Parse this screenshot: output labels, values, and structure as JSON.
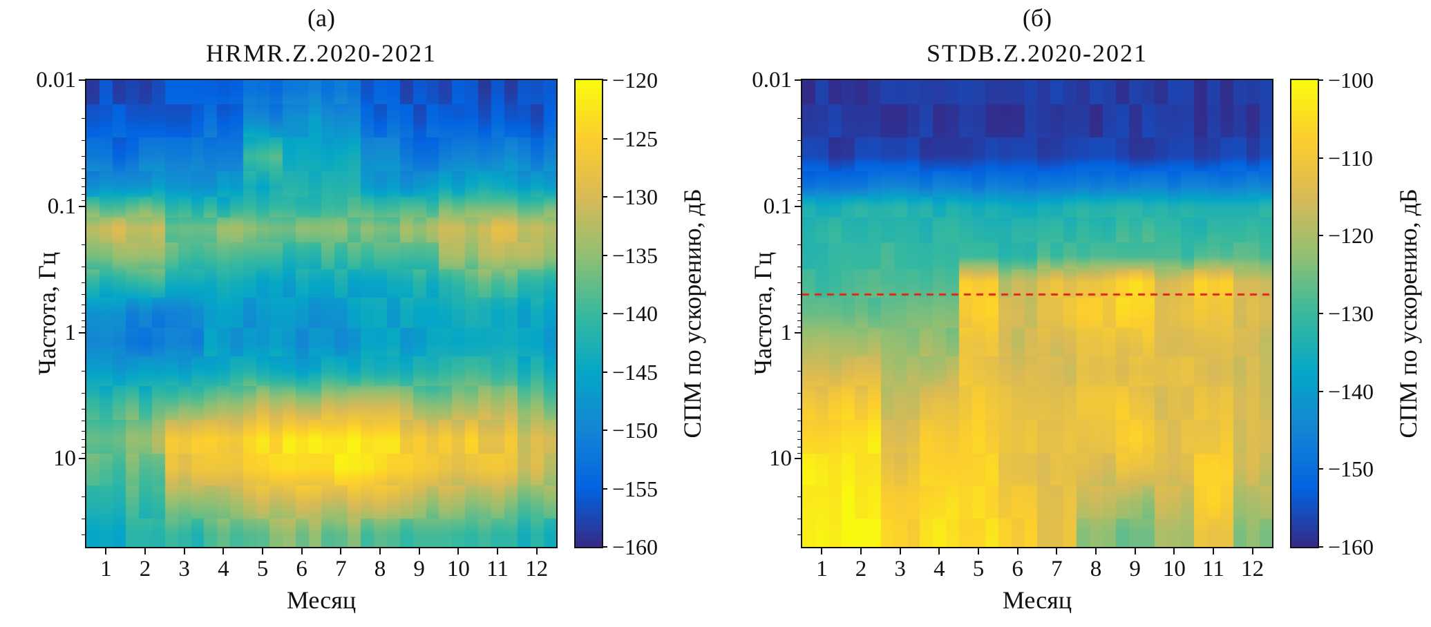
{
  "figure": {
    "background": "#ffffff"
  },
  "style": {
    "colormap": "parula",
    "colormap_stops": [
      [
        0.0,
        "#352a87"
      ],
      [
        0.125,
        "#0363e1"
      ],
      [
        0.25,
        "#1485d4"
      ],
      [
        0.375,
        "#06a7c6"
      ],
      [
        0.5,
        "#38b99e"
      ],
      [
        0.625,
        "#92bf73"
      ],
      [
        0.75,
        "#d9ba56"
      ],
      [
        0.875,
        "#fcce2e"
      ],
      [
        1.0,
        "#f9fb0e"
      ]
    ],
    "text_color": "#111111",
    "axis_color": "#111111",
    "column_jitter_db": 1.8,
    "subcolumns_per_month": 3
  },
  "chart_data": [
    {
      "type": "heatmap",
      "panel_label": "(а)",
      "title": "HRMR.Z.2020-2021",
      "xlabel": "Месяц",
      "ylabel": "Частота, Гц",
      "colorbar_label": "СПМ по ускорению, дБ",
      "months": [
        1,
        2,
        3,
        4,
        5,
        6,
        7,
        8,
        9,
        10,
        11,
        12
      ],
      "y_scale": "log",
      "y_axis_inverted": true,
      "y_range_hz": [
        0.01,
        50
      ],
      "y_ticks": [
        0.01,
        0.1,
        1,
        10
      ],
      "color_range_db": [
        -160,
        -120
      ],
      "colorbar_ticks": [
        -120,
        -125,
        -130,
        -135,
        -140,
        -145,
        -150,
        -155,
        -160
      ],
      "frequencies_hz": [
        0.012,
        0.02,
        0.04,
        0.07,
        0.1,
        0.15,
        0.25,
        0.4,
        0.7,
        1.2,
        2,
        3.5,
        7,
        12,
        22,
        40
      ],
      "values_db": [
        [
          -157,
          -157,
          -156,
          -156,
          -154,
          -152,
          -153,
          -156,
          -157,
          -157,
          -157,
          -157
        ],
        [
          -156,
          -156,
          -155,
          -154,
          -150,
          -147,
          -149,
          -154,
          -156,
          -156,
          -155,
          -156
        ],
        [
          -153,
          -152,
          -152,
          -150,
          -139,
          -145,
          -144,
          -150,
          -152,
          -151,
          -150,
          -152
        ],
        [
          -147,
          -146,
          -148,
          -147,
          -144,
          -143,
          -142,
          -147,
          -147,
          -145,
          -144,
          -146
        ],
        [
          -139,
          -138,
          -142,
          -142,
          -141,
          -141,
          -140,
          -141,
          -140,
          -138,
          -137,
          -138
        ],
        [
          -131,
          -130,
          -136,
          -135,
          -135,
          -136,
          -136,
          -135,
          -134,
          -131,
          -129,
          -131
        ],
        [
          -135,
          -134,
          -139,
          -139,
          -140,
          -141,
          -140,
          -139,
          -138,
          -134,
          -132,
          -134
        ],
        [
          -142,
          -141,
          -144,
          -144,
          -145,
          -145,
          -144,
          -144,
          -143,
          -140,
          -139,
          -141
        ],
        [
          -149,
          -150,
          -150,
          -147,
          -147,
          -148,
          -147,
          -146,
          -146,
          -143,
          -143,
          -145
        ],
        [
          -151,
          -152,
          -151,
          -147,
          -148,
          -149,
          -148,
          -146,
          -146,
          -144,
          -143,
          -146
        ],
        [
          -147,
          -147,
          -146,
          -144,
          -143,
          -145,
          -144,
          -143,
          -143,
          -141,
          -140,
          -143
        ],
        [
          -141,
          -140,
          -138,
          -136,
          -133,
          -134,
          -133,
          -133,
          -135,
          -135,
          -134,
          -137
        ],
        [
          -136,
          -134,
          -127,
          -126,
          -123,
          -122,
          -122,
          -123,
          -126,
          -126,
          -127,
          -130
        ],
        [
          -139,
          -137,
          -127,
          -128,
          -124,
          -122,
          -122,
          -123,
          -126,
          -127,
          -128,
          -131
        ],
        [
          -141,
          -140,
          -135,
          -134,
          -131,
          -130,
          -130,
          -131,
          -133,
          -134,
          -135,
          -137
        ],
        [
          -144,
          -143,
          -141,
          -139,
          -137,
          -136,
          -137,
          -138,
          -139,
          -140,
          -141,
          -142
        ]
      ],
      "reference_line": null
    },
    {
      "type": "heatmap",
      "panel_label": "(б)",
      "title": "STDB.Z.2020-2021",
      "xlabel": "Месяц",
      "ylabel": "Частота, Гц",
      "colorbar_label": "СПМ по ускорению, дБ",
      "months": [
        1,
        2,
        3,
        4,
        5,
        6,
        7,
        8,
        9,
        10,
        11,
        12
      ],
      "y_scale": "log",
      "y_axis_inverted": true,
      "y_range_hz": [
        0.01,
        50
      ],
      "y_ticks": [
        0.01,
        0.1,
        1,
        10
      ],
      "color_range_db": [
        -160,
        -100
      ],
      "colorbar_ticks": [
        -100,
        -110,
        -120,
        -130,
        -140,
        -150,
        -160
      ],
      "frequencies_hz": [
        0.012,
        0.02,
        0.04,
        0.07,
        0.1,
        0.15,
        0.25,
        0.4,
        0.7,
        1.2,
        2,
        3.5,
        7,
        12,
        22,
        40
      ],
      "values_db": [
        [
          -158,
          -158,
          -158,
          -158,
          -158,
          -158,
          -158,
          -158,
          -158,
          -158,
          -158,
          -158
        ],
        [
          -158,
          -158,
          -158,
          -158,
          -158,
          -158,
          -158,
          -158,
          -158,
          -158,
          -158,
          -158
        ],
        [
          -157,
          -157,
          -157,
          -157,
          -157,
          -157,
          -157,
          -157,
          -157,
          -157,
          -157,
          -157
        ],
        [
          -147,
          -146,
          -145,
          -146,
          -147,
          -148,
          -147,
          -146,
          -145,
          -146,
          -146,
          -145
        ],
        [
          -135,
          -133,
          -133,
          -134,
          -135,
          -136,
          -135,
          -134,
          -133,
          -134,
          -134,
          -133
        ],
        [
          -132,
          -131,
          -131,
          -132,
          -132,
          -133,
          -132,
          -131,
          -130,
          -131,
          -132,
          -130
        ],
        [
          -131,
          -130,
          -130,
          -131,
          -130,
          -131,
          -129,
          -128,
          -127,
          -129,
          -127,
          -128
        ],
        [
          -130,
          -129,
          -129,
          -129,
          -108,
          -118,
          -112,
          -110,
          -106,
          -114,
          -108,
          -115
        ],
        [
          -127,
          -126,
          -125,
          -125,
          -107,
          -116,
          -111,
          -109,
          -107,
          -112,
          -109,
          -114
        ],
        [
          -121,
          -120,
          -123,
          -122,
          -112,
          -117,
          -114,
          -112,
          -111,
          -114,
          -112,
          -116
        ],
        [
          -116,
          -115,
          -120,
          -119,
          -111,
          -114,
          -116,
          -113,
          -114,
          -113,
          -114,
          -116
        ],
        [
          -110,
          -109,
          -117,
          -113,
          -109,
          -112,
          -114,
          -111,
          -110,
          -114,
          -112,
          -115
        ],
        [
          -105,
          -104,
          -115,
          -109,
          -107,
          -111,
          -112,
          -112,
          -107,
          -113,
          -110,
          -115
        ],
        [
          -103,
          -103,
          -111,
          -108,
          -106,
          -111,
          -113,
          -114,
          -112,
          -113,
          -108,
          -116
        ],
        [
          -102,
          -102,
          -108,
          -105,
          -106,
          -109,
          -112,
          -118,
          -121,
          -117,
          -108,
          -120
        ],
        [
          -101,
          -102,
          -107,
          -104,
          -105,
          -108,
          -112,
          -122,
          -125,
          -120,
          -112,
          -123
        ]
      ],
      "reference_line": {
        "frequency_hz": 0.5,
        "color": "#e3241d",
        "dash": [
          10,
          8
        ],
        "width": 3
      }
    }
  ]
}
